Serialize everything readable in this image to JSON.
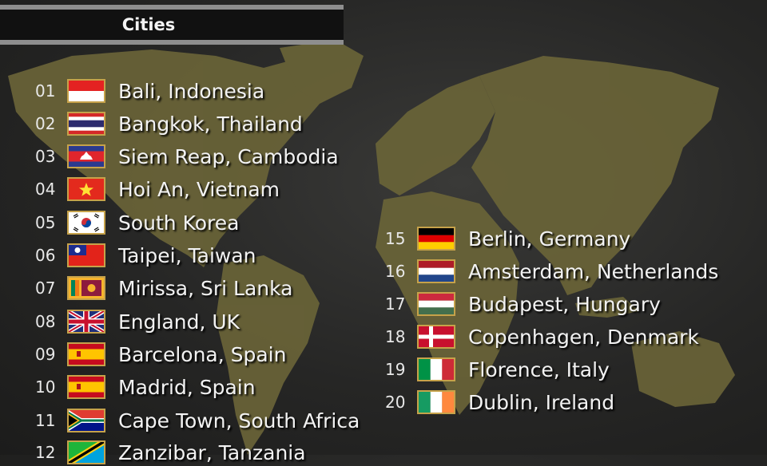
{
  "header": {
    "title": "Cities"
  },
  "cities": [
    {
      "num": "01",
      "name": "Bali, Indonesia",
      "flag": "indonesia-flag-icon"
    },
    {
      "num": "02",
      "name": "Bangkok, Thailand",
      "flag": "thailand-flag-icon"
    },
    {
      "num": "03",
      "name": "Siem Reap, Cambodia",
      "flag": "cambodia-flag-icon"
    },
    {
      "num": "04",
      "name": "Hoi An, Vietnam",
      "flag": "vietnam-flag-icon"
    },
    {
      "num": "05",
      "name": "South Korea",
      "flag": "south-korea-flag-icon"
    },
    {
      "num": "06",
      "name": "Taipei, Taiwan",
      "flag": "taiwan-flag-icon"
    },
    {
      "num": "07",
      "name": "Mirissa, Sri Lanka",
      "flag": "sri-lanka-flag-icon"
    },
    {
      "num": "08",
      "name": "England, UK",
      "flag": "uk-flag-icon"
    },
    {
      "num": "09",
      "name": "Barcelona, Spain",
      "flag": "spain-flag-icon"
    },
    {
      "num": "10",
      "name": "Madrid, Spain",
      "flag": "spain-flag-icon"
    },
    {
      "num": "11",
      "name": "Cape Town, South Africa",
      "flag": "south-africa-flag-icon"
    },
    {
      "num": "12",
      "name": "Zanzibar, Tanzania",
      "flag": "tanzania-flag-icon"
    },
    {
      "num": "15",
      "name": "Berlin, Germany",
      "flag": "germany-flag-icon"
    },
    {
      "num": "16",
      "name": "Amsterdam, Netherlands",
      "flag": "netherlands-flag-icon"
    },
    {
      "num": "17",
      "name": "Budapest, Hungary",
      "flag": "hungary-flag-icon"
    },
    {
      "num": "18",
      "name": "Copenhagen, Denmark",
      "flag": "denmark-flag-icon"
    },
    {
      "num": "19",
      "name": "Florence, Italy",
      "flag": "italy-flag-icon"
    },
    {
      "num": "20",
      "name": "Dublin, Ireland",
      "flag": "ireland-flag-icon"
    }
  ],
  "colors": {
    "map_land": "#6b6538",
    "background": "#262625",
    "flag_border": "#c6a24a",
    "header_bar": "#8e8e8e"
  }
}
